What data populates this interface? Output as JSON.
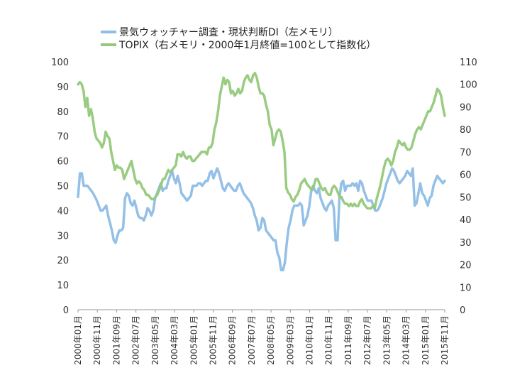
{
  "chart_data": {
    "type": "line",
    "title": "",
    "x_labels": [
      "2000年01月",
      "2000年11月",
      "2001年09月",
      "2002年07月",
      "2003年05月",
      "2004年03月",
      "2005年01月",
      "2005年11月",
      "2006年09月",
      "2007年07月",
      "2008年05月",
      "2009年03月",
      "2010年01月",
      "2010年11月",
      "2011年09月",
      "2012年07月",
      "2013年05月",
      "2014年03月",
      "2015年01月",
      "2015年11月"
    ],
    "y_left": {
      "min": 0,
      "max": 100,
      "ticks": [
        "0",
        "10",
        "20",
        "30",
        "40",
        "50",
        "60",
        "70",
        "80",
        "90",
        "100"
      ]
    },
    "y_right": {
      "min": 0,
      "max": 110,
      "ticks": [
        "0",
        "10",
        "20",
        "30",
        "40",
        "50",
        "60",
        "70",
        "80",
        "90",
        "100",
        "110"
      ]
    },
    "grid": false,
    "legend_position": "top",
    "series": [
      {
        "name": "景気ウォッチャー調査・現状判断DI（左メモリ）",
        "axis": "left",
        "color": "#8ebde6",
        "values": [
          45.5,
          55,
          55,
          50,
          50,
          50,
          49,
          48,
          47,
          45.5,
          44,
          42,
          40,
          40,
          41,
          42,
          38,
          35,
          32,
          28,
          27,
          30,
          32,
          32,
          33,
          45,
          47,
          46,
          43,
          42,
          44,
          41,
          38,
          37,
          37,
          36,
          38,
          41,
          40,
          38,
          40,
          45,
          47,
          49,
          51,
          48,
          49,
          49,
          52,
          54,
          56,
          53,
          51,
          54,
          51,
          47,
          46,
          45,
          44,
          45,
          46,
          50,
          50,
          50,
          51,
          51,
          50,
          51,
          52,
          52,
          55,
          56,
          53,
          55,
          57,
          55,
          52,
          49,
          48,
          50,
          51,
          50,
          49,
          48,
          48,
          50,
          51,
          49,
          47,
          46,
          45,
          44,
          43,
          41,
          38,
          36,
          32,
          33,
          37,
          36,
          32,
          31,
          30,
          29,
          28,
          28,
          23,
          21,
          16,
          16,
          19,
          27,
          33,
          36,
          40,
          42,
          42,
          42,
          43,
          42,
          34,
          36,
          38,
          42,
          48,
          50,
          48,
          47,
          49,
          45,
          43,
          41,
          40,
          42,
          43,
          44,
          41,
          28,
          28,
          45,
          51,
          52,
          48,
          50,
          50,
          50,
          51,
          50,
          51,
          48,
          52,
          51,
          48,
          46,
          44,
          44,
          44,
          42,
          40,
          40,
          41,
          43,
          45,
          48,
          51,
          53,
          55,
          57,
          56,
          54,
          52,
          51,
          52,
          53,
          54,
          56,
          55,
          54,
          57,
          42,
          43,
          47,
          51,
          47,
          46,
          44,
          42,
          45,
          46,
          50,
          52,
          54,
          53,
          52,
          51,
          52
        ]
      },
      {
        "name": "TOPIX（右メモリ・2000年1月終値=100として指数化）",
        "axis": "right",
        "color": "#94c97a",
        "values": [
          100,
          101,
          100,
          97,
          90,
          94,
          86,
          89,
          85,
          79,
          76,
          75,
          74,
          72,
          74,
          79,
          77,
          76,
          70,
          66,
          62,
          64,
          63,
          63,
          62,
          58,
          60,
          62,
          64,
          66,
          62,
          58,
          56,
          57,
          56,
          54,
          53,
          51,
          51,
          50,
          49,
          49,
          50,
          51,
          53,
          55,
          58,
          58,
          60,
          62,
          61,
          62,
          63,
          64,
          69,
          69,
          68,
          70,
          68,
          67,
          68,
          68,
          66,
          66,
          67,
          68,
          69,
          70,
          70,
          70,
          69,
          72,
          72,
          74,
          80,
          83,
          88,
          95,
          99,
          103,
          100,
          102,
          101,
          96,
          97,
          95,
          96,
          98,
          96,
          97,
          101,
          103,
          104,
          102,
          101,
          104,
          105,
          103,
          99,
          96,
          96,
          95,
          91,
          88,
          82,
          80,
          73,
          76,
          79,
          80,
          79,
          75,
          70,
          54,
          52,
          51,
          49,
          48,
          50,
          51,
          53,
          56,
          57,
          58,
          56,
          55,
          54,
          53,
          55,
          58,
          58,
          56,
          54,
          53,
          54,
          52,
          51,
          51,
          54,
          55,
          54,
          52,
          50,
          50,
          48,
          47,
          47,
          46,
          47,
          46,
          47,
          46,
          46,
          48,
          49,
          47,
          46,
          45,
          45,
          45,
          46,
          45,
          49,
          52,
          55,
          59,
          63,
          66,
          67,
          66,
          64,
          66,
          70,
          72,
          75,
          74,
          73,
          74,
          72,
          71,
          71,
          72,
          75,
          78,
          80,
          81,
          80,
          82,
          84,
          86,
          88,
          88,
          90,
          92,
          95,
          98,
          97,
          95,
          90,
          86
        ]
      }
    ]
  }
}
